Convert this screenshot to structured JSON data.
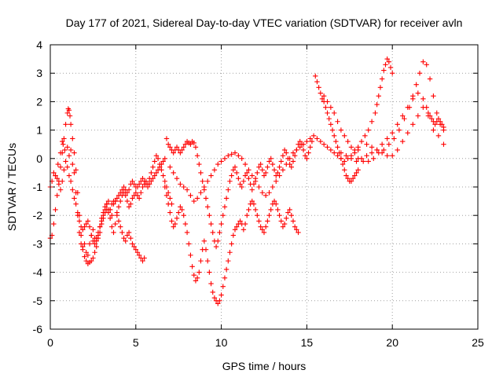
{
  "chart_data": {
    "type": "scatter",
    "title": "Day 177 of 2021, Sidereal Day-to-day VTEC variation (SDTVAR) for receiver avln",
    "xlabel": "GPS time / hours",
    "ylabel": "SDTVAR / TECUs",
    "xlim": [
      0,
      25
    ],
    "ylim": [
      -6,
      4
    ],
    "xticks": [
      0,
      5,
      10,
      15,
      20,
      25
    ],
    "yticks": [
      -6,
      -5,
      -4,
      -3,
      -2,
      -1,
      0,
      1,
      2,
      3,
      4
    ],
    "xtick_labels": [
      "0",
      "5",
      "10",
      "15",
      "20",
      "25"
    ],
    "ytick_labels": [
      "-6",
      "-5",
      "-4",
      "-3",
      "-2",
      "-1",
      "0",
      "1",
      "2",
      "3",
      "4"
    ],
    "grid": true,
    "legend": "none",
    "marker": "plus",
    "series": [
      {
        "name": "trace-a",
        "color": "#ff0000",
        "x": [
          0.0,
          0.1,
          0.2,
          0.3,
          0.45,
          0.6,
          0.7,
          0.75,
          0.85,
          1.0,
          1.1,
          1.2,
          1.3,
          1.4,
          1.5,
          1.6,
          1.7,
          1.8,
          1.9,
          2.0,
          2.1,
          2.2,
          2.3,
          2.4,
          2.5,
          2.6,
          2.7,
          2.8,
          2.9,
          3.0,
          3.1,
          3.2,
          3.3,
          3.4,
          3.5,
          3.6,
          3.7,
          3.8,
          3.9,
          4.0,
          4.1,
          4.2,
          4.3,
          4.4,
          4.5,
          4.6,
          4.7,
          4.8,
          4.9,
          5.0,
          5.1,
          5.2,
          5.3,
          5.4,
          5.5
        ],
        "y": [
          -1.0,
          -0.8,
          -0.5,
          -0.6,
          -0.2,
          0.2,
          0.6,
          0.5,
          0.3,
          0.4,
          0.1,
          0.3,
          -0.2,
          -0.5,
          -1.2,
          -2.0,
          -2.6,
          -3.0,
          -3.1,
          -3.0,
          -3.3,
          -3.4,
          -3.0,
          -2.7,
          -2.5,
          -2.8,
          -2.9,
          -2.7,
          -2.4,
          -2.1,
          -1.9,
          -1.7,
          -1.6,
          -1.5,
          -1.8,
          -2.0,
          -1.6,
          -1.5,
          -1.9,
          -2.2,
          -2.4,
          -2.6,
          -2.8,
          -2.9,
          -2.7,
          -2.6,
          -2.8,
          -3.0,
          -3.1,
          -3.2,
          -3.3,
          -3.4,
          -3.5,
          -3.6,
          -3.5
        ]
      },
      {
        "name": "trace-b",
        "color": "#ff0000",
        "x": [
          0.0,
          0.1,
          0.2,
          0.3,
          0.4,
          0.5,
          0.6,
          0.7,
          0.8,
          0.9,
          1.0,
          1.05,
          1.1,
          1.15,
          1.2,
          1.3,
          1.4,
          1.5,
          1.6,
          1.7,
          1.8,
          1.9,
          2.0,
          2.1,
          2.2,
          2.3,
          2.4,
          2.5,
          2.6,
          2.7,
          2.8,
          2.9,
          3.0,
          3.1,
          3.2,
          3.3,
          3.4,
          3.5,
          3.6,
          3.7,
          3.8,
          3.9,
          4.0,
          4.1,
          4.2,
          4.3,
          4.4,
          4.5,
          4.6,
          4.7,
          4.8,
          4.9,
          5.0,
          5.1,
          5.2,
          5.3,
          5.4,
          5.5,
          5.6,
          5.7,
          5.8,
          5.9,
          6.0,
          6.1,
          6.2,
          6.3,
          6.4,
          6.5,
          6.6,
          6.7
        ],
        "y": [
          -2.8,
          -2.7,
          -2.3,
          -1.8,
          -1.3,
          -0.8,
          -0.3,
          0.2,
          0.7,
          1.2,
          1.6,
          1.75,
          1.7,
          1.5,
          1.2,
          0.7,
          0.2,
          -0.4,
          -1.2,
          -2.0,
          -2.7,
          -3.2,
          -3.45,
          -3.6,
          -3.7,
          -3.65,
          -3.6,
          -3.5,
          -3.3,
          -3.1,
          -2.8,
          -2.6,
          -2.3,
          -2.1,
          -1.9,
          -1.8,
          -1.9,
          -1.8,
          -1.6,
          -1.5,
          -1.5,
          -1.4,
          -1.3,
          -1.2,
          -1.1,
          -1.0,
          -1.1,
          -1.2,
          -1.1,
          -0.9,
          -0.8,
          -0.9,
          -1.0,
          -1.0,
          -0.9,
          -0.8,
          -0.7,
          -0.8,
          -0.9,
          -1.0,
          -0.9,
          -0.8,
          -0.7,
          -0.6,
          -0.5,
          -0.4,
          -0.3,
          -0.2,
          -0.1,
          0.0
        ]
      },
      {
        "name": "trace-c",
        "color": "#ff0000",
        "x": [
          0.3,
          0.4,
          0.5,
          0.6,
          0.7,
          0.8,
          0.9,
          1.0,
          1.1,
          1.2,
          1.3,
          1.4,
          1.5,
          1.6,
          1.7,
          1.8,
          1.9,
          2.0,
          2.1,
          2.2,
          2.3,
          2.4,
          2.5,
          2.6,
          2.7,
          2.8,
          2.9,
          3.0,
          3.1,
          3.2,
          3.3,
          3.4,
          3.5,
          3.6,
          3.7,
          3.8,
          3.9,
          4.0,
          4.1,
          4.2,
          4.3,
          4.4,
          4.5,
          4.6,
          4.7,
          4.8,
          4.9,
          5.0,
          5.1,
          5.2,
          5.3,
          5.4,
          5.5,
          5.6,
          5.7,
          5.8,
          5.9,
          6.0,
          6.1,
          6.2,
          6.3,
          6.4,
          6.5,
          6.6,
          6.7,
          6.8,
          6.9,
          7.0,
          7.1
        ],
        "y": [
          -0.6,
          -0.7,
          -0.9,
          -1.1,
          -0.8,
          -0.4,
          -0.1,
          -0.3,
          -0.6,
          -0.8,
          -1.1,
          -1.4,
          -1.6,
          -1.9,
          -2.2,
          -2.4,
          -2.5,
          -2.4,
          -2.3,
          -2.2,
          -2.4,
          -2.7,
          -2.9,
          -3.0,
          -2.8,
          -2.6,
          -2.4,
          -2.2,
          -2.0,
          -1.8,
          -1.6,
          -1.8,
          -2.1,
          -2.4,
          -2.6,
          -2.3,
          -2.0,
          -1.7,
          -1.5,
          -1.3,
          -1.2,
          -1.3,
          -1.5,
          -1.7,
          -1.6,
          -1.4,
          -1.3,
          -1.2,
          -1.3,
          -1.4,
          -1.2,
          -1.0,
          -0.9,
          -0.8,
          -0.9,
          -0.7,
          -0.5,
          -0.3,
          -0.1,
          0.1,
          0.0,
          -0.2,
          -0.4,
          -0.6,
          -0.8,
          -1.0,
          -1.2,
          -1.4,
          -1.6
        ]
      },
      {
        "name": "trace-d",
        "color": "#ff0000",
        "x": [
          6.7,
          6.8,
          6.9,
          7.0,
          7.1,
          7.2,
          7.3,
          7.4,
          7.5,
          7.6,
          7.7,
          7.8,
          7.9,
          8.0,
          8.1,
          8.2,
          8.3,
          8.4,
          8.5,
          8.6,
          8.7,
          8.8,
          8.9,
          9.0,
          9.1,
          9.2,
          9.3,
          9.4,
          9.5,
          9.6,
          9.7,
          9.8,
          9.9,
          10.0,
          10.1,
          10.2,
          10.3,
          10.4,
          10.5,
          10.6,
          10.7,
          10.8,
          10.9,
          11.0,
          11.1,
          11.2,
          11.3,
          11.4,
          11.5,
          11.6,
          11.7,
          11.8,
          11.9,
          12.0,
          12.1,
          12.2,
          12.3,
          12.4,
          12.5,
          12.6,
          12.7,
          12.8,
          12.9,
          13.0,
          13.1,
          13.2,
          13.3,
          13.4,
          13.5,
          13.6,
          13.7,
          13.8,
          13.9,
          14.0,
          14.1,
          14.2,
          14.3,
          14.4,
          14.5
        ],
        "y": [
          -1.0,
          -1.3,
          -1.6,
          -1.9,
          -2.2,
          -2.4,
          -2.3,
          -2.1,
          -1.9,
          -1.7,
          -1.8,
          -2.0,
          -2.3,
          -2.6,
          -3.0,
          -3.4,
          -3.8,
          -4.1,
          -4.3,
          -4.2,
          -4.0,
          -3.6,
          -3.2,
          -2.9,
          -3.2,
          -3.6,
          -4.0,
          -4.4,
          -4.7,
          -4.9,
          -5.0,
          -5.1,
          -5.0,
          -4.8,
          -4.5,
          -4.2,
          -3.9,
          -3.6,
          -3.3,
          -3.0,
          -2.7,
          -2.5,
          -2.4,
          -2.3,
          -2.2,
          -2.3,
          -2.5,
          -2.3,
          -2.0,
          -1.8,
          -1.6,
          -1.5,
          -1.6,
          -1.8,
          -2.0,
          -2.2,
          -2.4,
          -2.5,
          -2.6,
          -2.4,
          -2.2,
          -2.0,
          -1.8,
          -1.6,
          -1.5,
          -1.6,
          -1.8,
          -2.0,
          -2.2,
          -2.4,
          -2.3,
          -2.1,
          -1.9,
          -1.8,
          -2.0,
          -2.2,
          -2.4,
          -2.5,
          -2.6
        ]
      },
      {
        "name": "trace-e",
        "color": "#ff0000",
        "x": [
          6.8,
          6.9,
          7.0,
          7.1,
          7.2,
          7.3,
          7.4,
          7.5,
          7.6,
          7.7,
          7.8,
          7.9,
          8.0,
          8.1,
          8.2,
          8.3,
          8.4,
          8.5,
          8.6,
          8.7,
          8.8,
          8.9,
          9.0,
          9.1,
          9.2,
          9.3,
          9.4,
          9.5,
          9.6,
          9.7,
          9.8,
          9.9,
          10.0,
          10.1,
          10.2,
          10.3,
          10.4,
          10.5,
          10.6,
          10.7,
          10.8,
          10.9,
          11.0,
          11.1,
          11.2,
          11.3,
          11.4,
          11.5,
          11.6,
          11.7,
          11.8,
          11.9,
          12.0,
          12.1,
          12.2,
          12.3,
          12.4,
          12.5,
          12.6,
          12.7,
          12.8,
          12.9,
          13.0,
          13.1,
          13.2,
          13.3,
          13.4,
          13.5,
          13.6,
          13.7,
          13.8,
          13.9,
          14.0,
          14.1,
          14.2,
          14.3,
          14.4,
          14.5,
          14.6,
          14.7,
          14.8,
          14.9,
          15.0,
          15.1,
          15.2,
          15.3
        ],
        "y": [
          0.7,
          0.5,
          0.4,
          0.3,
          0.2,
          0.3,
          0.4,
          0.3,
          0.2,
          0.3,
          0.4,
          0.5,
          0.6,
          0.55,
          0.5,
          0.6,
          0.55,
          0.4,
          0.1,
          -0.2,
          -0.5,
          -0.8,
          -1.1,
          -1.4,
          -1.7,
          -2.0,
          -2.3,
          -2.6,
          -2.9,
          -3.1,
          -2.9,
          -2.6,
          -2.3,
          -2.0,
          -1.7,
          -1.4,
          -1.1,
          -0.8,
          -0.6,
          -0.4,
          -0.3,
          -0.5,
          -0.7,
          -0.9,
          -1.0,
          -0.8,
          -0.6,
          -0.5,
          -0.7,
          -0.9,
          -1.1,
          -0.9,
          -0.7,
          -0.5,
          -0.3,
          -0.2,
          -0.4,
          -0.6,
          -0.5,
          -0.3,
          -0.1,
          0.0,
          -0.2,
          -0.4,
          -0.6,
          -0.5,
          -0.3,
          -0.1,
          0.1,
          0.3,
          0.2,
          0.0,
          -0.2,
          -0.3,
          -0.1,
          0.1,
          0.3,
          0.5,
          0.6,
          0.5,
          0.3,
          0.1,
          0.0,
          0.2,
          0.4,
          0.6
        ]
      },
      {
        "name": "trace-f",
        "color": "#ff0000",
        "x": [
          7.0,
          7.2,
          7.4,
          7.6,
          7.8,
          8.0,
          8.2,
          8.4,
          8.6,
          8.8,
          9.0,
          9.2,
          9.4,
          9.6,
          9.8,
          10.0,
          10.2,
          10.4,
          10.6,
          10.8,
          11.0,
          11.2,
          11.4,
          11.6,
          11.8,
          12.0,
          12.2,
          12.4,
          12.6,
          12.8,
          13.0,
          13.2,
          13.4,
          13.6,
          13.8,
          14.0,
          14.2,
          14.4,
          14.6,
          14.8,
          15.0,
          15.2,
          15.4,
          15.6,
          15.8,
          16.0,
          16.2,
          16.4,
          16.6,
          16.8,
          17.0,
          17.2,
          17.4,
          17.6,
          17.8,
          18.0
        ],
        "y": [
          -0.3,
          -0.5,
          -0.7,
          -0.9,
          -1.0,
          -1.1,
          -1.3,
          -1.5,
          -1.4,
          -1.2,
          -1.0,
          -0.8,
          -0.6,
          -0.4,
          -0.2,
          -0.1,
          0.0,
          0.1,
          0.15,
          0.2,
          0.1,
          0.0,
          -0.2,
          -0.4,
          -0.6,
          -0.8,
          -1.0,
          -1.2,
          -1.3,
          -1.2,
          -1.0,
          -0.8,
          -0.6,
          -0.4,
          -0.2,
          0.0,
          0.2,
          0.3,
          0.4,
          0.5,
          0.6,
          0.7,
          0.8,
          0.7,
          0.6,
          0.5,
          0.4,
          0.3,
          0.2,
          0.1,
          0.0,
          -0.1,
          0.0,
          0.1,
          0.2,
          0.3
        ]
      },
      {
        "name": "trace-g",
        "color": "#ff0000",
        "x": [
          15.5,
          15.6,
          15.7,
          15.8,
          15.9,
          16.0,
          16.1,
          16.2,
          16.3,
          16.4,
          16.5,
          16.6,
          16.7,
          16.8,
          16.9,
          17.0,
          17.1,
          17.2,
          17.3,
          17.4,
          17.5,
          17.6,
          17.7,
          17.8,
          17.9,
          18.0
        ],
        "y": [
          2.9,
          2.7,
          2.5,
          2.3,
          2.1,
          2.0,
          1.8,
          1.6,
          1.4,
          1.2,
          1.0,
          0.8,
          0.6,
          0.4,
          0.2,
          0.0,
          -0.2,
          -0.4,
          -0.6,
          -0.7,
          -0.8,
          -0.8,
          -0.7,
          -0.6,
          -0.5,
          -0.4
        ]
      },
      {
        "name": "trace-h",
        "color": "#ff0000",
        "x": [
          16.0,
          16.2,
          16.4,
          16.6,
          16.8,
          17.0,
          17.2,
          17.4,
          17.6,
          17.8,
          18.0,
          18.2,
          18.4,
          18.6,
          18.8,
          19.0,
          19.1,
          19.2,
          19.3,
          19.4,
          19.5,
          19.6,
          19.7,
          19.8,
          19.9,
          20.0
        ],
        "y": [
          2.2,
          2.0,
          1.8,
          1.6,
          1.3,
          1.0,
          0.8,
          0.6,
          0.4,
          0.3,
          0.4,
          0.6,
          0.8,
          1.0,
          1.3,
          1.6,
          1.9,
          2.2,
          2.5,
          2.8,
          3.1,
          3.3,
          3.5,
          3.4,
          3.2,
          3.0
        ]
      },
      {
        "name": "trace-i",
        "color": "#ff0000",
        "x": [
          17.0,
          17.3,
          17.6,
          17.9,
          18.2,
          18.5,
          18.8,
          19.1,
          19.4,
          19.7,
          20.0,
          20.3,
          20.6,
          20.9,
          21.2,
          21.5,
          21.8,
          22.0,
          22.1,
          22.2,
          22.3,
          22.4,
          22.5,
          22.6,
          22.7,
          22.8,
          22.9,
          23.0
        ],
        "y": [
          0.2,
          0.1,
          0.0,
          -0.1,
          0.0,
          0.1,
          0.2,
          0.3,
          0.5,
          0.7,
          0.9,
          1.2,
          1.5,
          1.8,
          2.1,
          2.3,
          2.1,
          1.8,
          1.6,
          1.5,
          1.4,
          1.3,
          1.2,
          1.3,
          1.4,
          1.3,
          1.2,
          1.1
        ]
      },
      {
        "name": "trace-j",
        "color": "#ff0000",
        "x": [
          18.0,
          18.3,
          18.6,
          18.9,
          19.2,
          19.5,
          19.8,
          20.1,
          20.4,
          20.7,
          21.0,
          21.2,
          21.4,
          21.6,
          21.8,
          22.0,
          22.2,
          22.4,
          22.6,
          22.8,
          23.0
        ],
        "y": [
          0.0,
          -0.1,
          -0.1,
          0.0,
          0.2,
          0.3,
          0.5,
          0.7,
          1.0,
          1.4,
          1.8,
          2.2,
          2.6,
          3.0,
          3.4,
          3.3,
          2.8,
          2.2,
          1.6,
          1.2,
          1.0
        ]
      },
      {
        "name": "trace-k",
        "color": "#ff0000",
        "x": [
          18.5,
          18.8,
          19.1,
          19.4,
          19.7,
          20.0,
          20.3,
          20.6,
          20.9,
          21.2,
          21.5,
          21.8,
          22.1,
          22.4,
          22.7,
          23.0
        ],
        "y": [
          0.5,
          0.4,
          0.3,
          0.2,
          0.1,
          0.1,
          0.3,
          0.6,
          0.9,
          1.2,
          1.5,
          1.8,
          1.5,
          1.0,
          0.8,
          0.5
        ]
      }
    ]
  }
}
